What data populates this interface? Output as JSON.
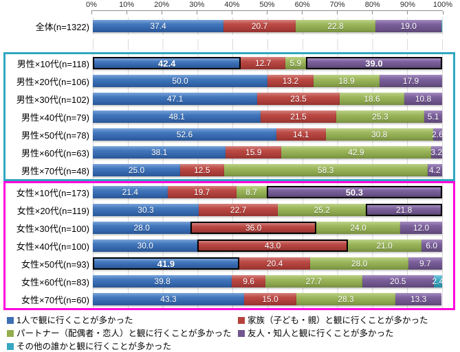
{
  "chart_data": {
    "type": "bar",
    "stacked": true,
    "orientation": "horizontal",
    "value_unit": "%",
    "xlim": [
      0,
      100
    ],
    "grid": true,
    "axis_ticks": [
      "0%",
      "10%",
      "20%",
      "30%",
      "40%",
      "50%",
      "60%",
      "70%",
      "80%",
      "90%",
      "100%"
    ],
    "categories": [
      "全体(n=1322)",
      "男性×10代(n=118)",
      "男性×20代(n=106)",
      "男性×30代(n=102)",
      "男性×40代(n=79)",
      "男性×50代(n=78)",
      "男性×60代(n=63)",
      "男性×70代(n=48)",
      "女性×10代(n=173)",
      "女性×20代(n=119)",
      "女性×30代(n=100)",
      "女性×40代(n=100)",
      "女性×50代(n=93)",
      "女性×60代(n=83)",
      "女性×70代(n=60)"
    ],
    "series": [
      {
        "name": "1人で観に行くことが多かった",
        "color": "#3e6fb4",
        "values": [
          37.4,
          42.4,
          50.0,
          47.1,
          48.1,
          52.6,
          38.1,
          25.0,
          21.4,
          30.3,
          28.0,
          30.0,
          41.9,
          39.8,
          43.3
        ]
      },
      {
        "name": "家族（子ども・親）と観に行くことが多かった",
        "color": "#b6413d",
        "values": [
          20.7,
          12.7,
          13.2,
          23.5,
          21.5,
          14.1,
          15.9,
          12.5,
          19.7,
          22.7,
          36.0,
          43.0,
          20.4,
          9.6,
          15.0
        ]
      },
      {
        "name": "パートナー（配偶者・恋人）と観に行くことが多かった",
        "color": "#93ae4c",
        "values": [
          22.8,
          5.9,
          18.9,
          18.6,
          25.3,
          30.8,
          42.9,
          58.3,
          8.7,
          25.2,
          24.0,
          21.0,
          28.0,
          27.7,
          28.3
        ]
      },
      {
        "name": "友人・知人と観に行くことが多かった",
        "color": "#725690",
        "values": [
          19.0,
          39.0,
          17.9,
          10.8,
          5.1,
          2.6,
          3.2,
          4.2,
          50.3,
          21.8,
          12.0,
          6.0,
          9.7,
          20.5,
          13.3
        ]
      },
      {
        "name": "その他の誰かと観に行くことが多かった",
        "color": "#35a7c0",
        "values": [
          0.1,
          0,
          0,
          0,
          0,
          0,
          0,
          0,
          0,
          0,
          0,
          0,
          0,
          2.4,
          0
        ]
      }
    ],
    "highlights": [
      {
        "row": 1,
        "series": 0,
        "bold": true
      },
      {
        "row": 1,
        "series": 3,
        "bold": true
      },
      {
        "row": 8,
        "series": 3,
        "bold": true
      },
      {
        "row": 9,
        "series": 3,
        "bold": false
      },
      {
        "row": 10,
        "series": 1,
        "bold": false
      },
      {
        "row": 11,
        "series": 1,
        "bold": false
      },
      {
        "row": 12,
        "series": 0,
        "bold": true
      }
    ],
    "groups": [
      {
        "name": "overall",
        "rows": [
          0
        ],
        "box_color": null
      },
      {
        "name": "male",
        "rows": [
          1,
          2,
          3,
          4,
          5,
          6,
          7
        ],
        "box_color": "#2fa7c0"
      },
      {
        "name": "female",
        "rows": [
          8,
          9,
          10,
          11,
          12,
          13,
          14
        ],
        "box_color": "#ff00dc"
      }
    ],
    "legend_position": "bottom"
  },
  "legend": {
    "items": [
      {
        "label": "1人で観に行くことが多かった",
        "color": "#3e6fb4"
      },
      {
        "label": "家族（子ども・親）と観に行くことが多かった",
        "color": "#b6413d"
      },
      {
        "label": "パートナー（配偶者・恋人）と観に行くことが多かった",
        "color": "#93ae4c"
      },
      {
        "label": "友人・知人と観に行くことが多かった",
        "color": "#725690"
      },
      {
        "label": "その他の誰かと観に行くことが多かった",
        "color": "#35a7c0"
      }
    ]
  }
}
